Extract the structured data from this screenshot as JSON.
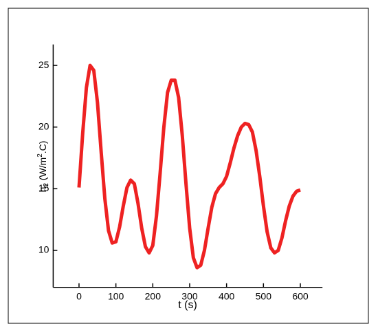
{
  "chart_data": {
    "type": "line",
    "xlabel": "t (s)",
    "ylabel_parts": [
      "h",
      "2",
      " (W/m",
      "2",
      ".C)"
    ],
    "x": [
      0,
      10,
      20,
      30,
      40,
      50,
      60,
      70,
      80,
      90,
      100,
      110,
      120,
      130,
      140,
      150,
      160,
      170,
      180,
      190,
      200,
      210,
      220,
      230,
      240,
      250,
      260,
      270,
      280,
      290,
      300,
      310,
      320,
      330,
      340,
      350,
      360,
      370,
      380,
      390,
      400,
      410,
      420,
      430,
      440,
      450,
      460,
      470,
      480,
      490,
      500,
      510,
      520,
      530,
      540,
      550,
      560,
      570,
      580,
      590,
      600
    ],
    "series": [
      {
        "color": "#ee2222",
        "values": [
          15.1,
          19.5,
          23.2,
          25.0,
          24.6,
          22.0,
          18.0,
          14.2,
          11.6,
          10.6,
          10.7,
          11.9,
          13.6,
          15.1,
          15.7,
          15.4,
          13.8,
          11.8,
          10.3,
          9.8,
          10.4,
          12.8,
          16.3,
          20.0,
          22.8,
          23.8,
          23.8,
          22.4,
          19.3,
          15.4,
          11.8,
          9.4,
          8.6,
          8.8,
          10.0,
          11.8,
          13.5,
          14.6,
          15.1,
          15.4,
          16.0,
          17.1,
          18.3,
          19.3,
          20.0,
          20.3,
          20.2,
          19.6,
          18.1,
          16.0,
          13.6,
          11.5,
          10.2,
          9.8,
          10.0,
          11.0,
          12.4,
          13.6,
          14.4,
          14.8,
          14.9
        ]
      }
    ],
    "xlim": [
      -70,
      660
    ],
    "xticks": [
      0,
      100,
      200,
      300,
      400,
      500,
      600
    ],
    "ylim": [
      7,
      26.7
    ],
    "yticks": [
      10,
      15,
      20,
      25
    ]
  }
}
